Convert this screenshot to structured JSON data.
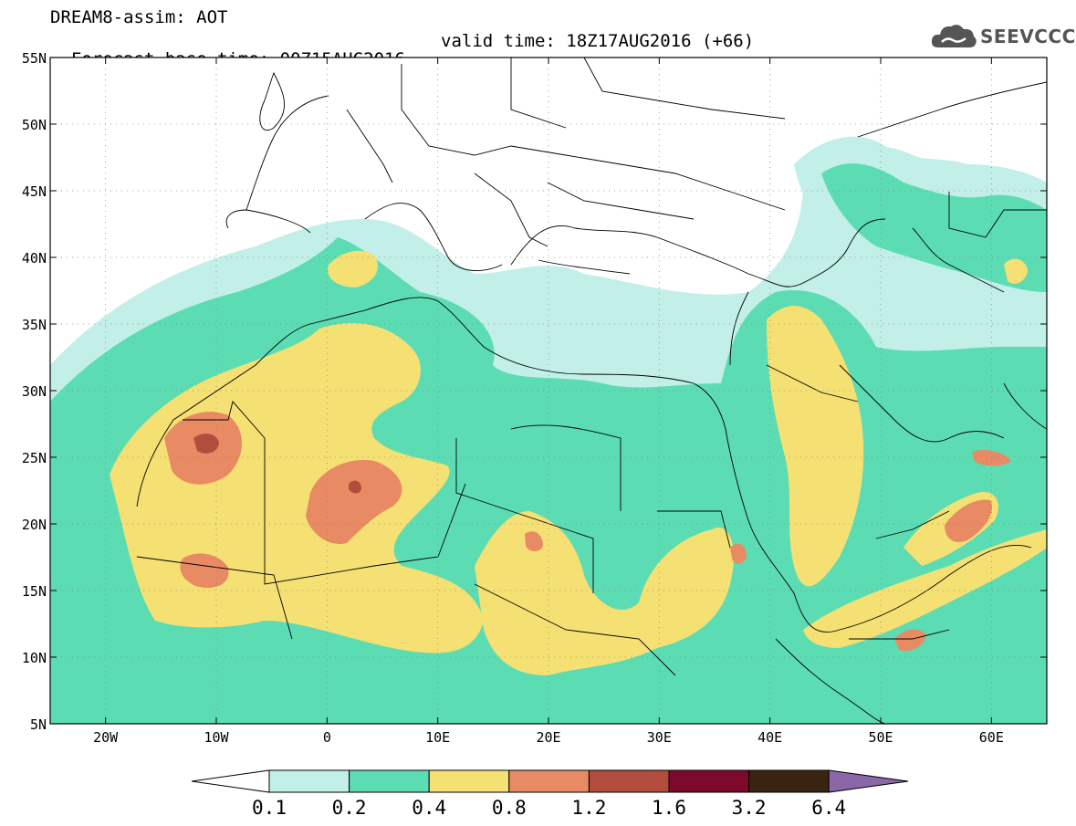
{
  "header": {
    "line1": "DREAM8-assim: AOT",
    "base_label": "Forecast base time: 00Z15AUG2016",
    "valid_label": "valid time: 18Z17AUG2016 (+66)"
  },
  "logo": {
    "text": "SEEVCCC",
    "icon": "cloud-icon"
  },
  "map": {
    "lon_range": [
      -25,
      65
    ],
    "lat_range": [
      5,
      55
    ],
    "lat_ticks": [
      {
        "v": 55,
        "label": "55N"
      },
      {
        "v": 50,
        "label": "50N"
      },
      {
        "v": 45,
        "label": "45N"
      },
      {
        "v": 40,
        "label": "40N"
      },
      {
        "v": 35,
        "label": "35N"
      },
      {
        "v": 30,
        "label": "30N"
      },
      {
        "v": 25,
        "label": "25N"
      },
      {
        "v": 20,
        "label": "20N"
      },
      {
        "v": 15,
        "label": "15N"
      },
      {
        "v": 10,
        "label": "10N"
      },
      {
        "v": 5,
        "label": "5N"
      }
    ],
    "lon_ticks": [
      {
        "v": -20,
        "label": "20W"
      },
      {
        "v": -10,
        "label": "10W"
      },
      {
        "v": 0,
        "label": "0"
      },
      {
        "v": 10,
        "label": "10E"
      },
      {
        "v": 20,
        "label": "20E"
      },
      {
        "v": 30,
        "label": "30E"
      },
      {
        "v": 40,
        "label": "40E"
      },
      {
        "v": 50,
        "label": "50E"
      },
      {
        "v": 60,
        "label": "60E"
      }
    ]
  },
  "colorbar": {
    "labels": [
      "0.1",
      "0.2",
      "0.4",
      "0.8",
      "1.2",
      "1.6",
      "3.2",
      "6.4"
    ],
    "colors": [
      "#ffffff",
      "#c2efe7",
      "#5cdcb3",
      "#f5e073",
      "#e88a63",
      "#b24c3c",
      "#7d0a2c",
      "#3a2411",
      "#8b67a8"
    ]
  }
}
